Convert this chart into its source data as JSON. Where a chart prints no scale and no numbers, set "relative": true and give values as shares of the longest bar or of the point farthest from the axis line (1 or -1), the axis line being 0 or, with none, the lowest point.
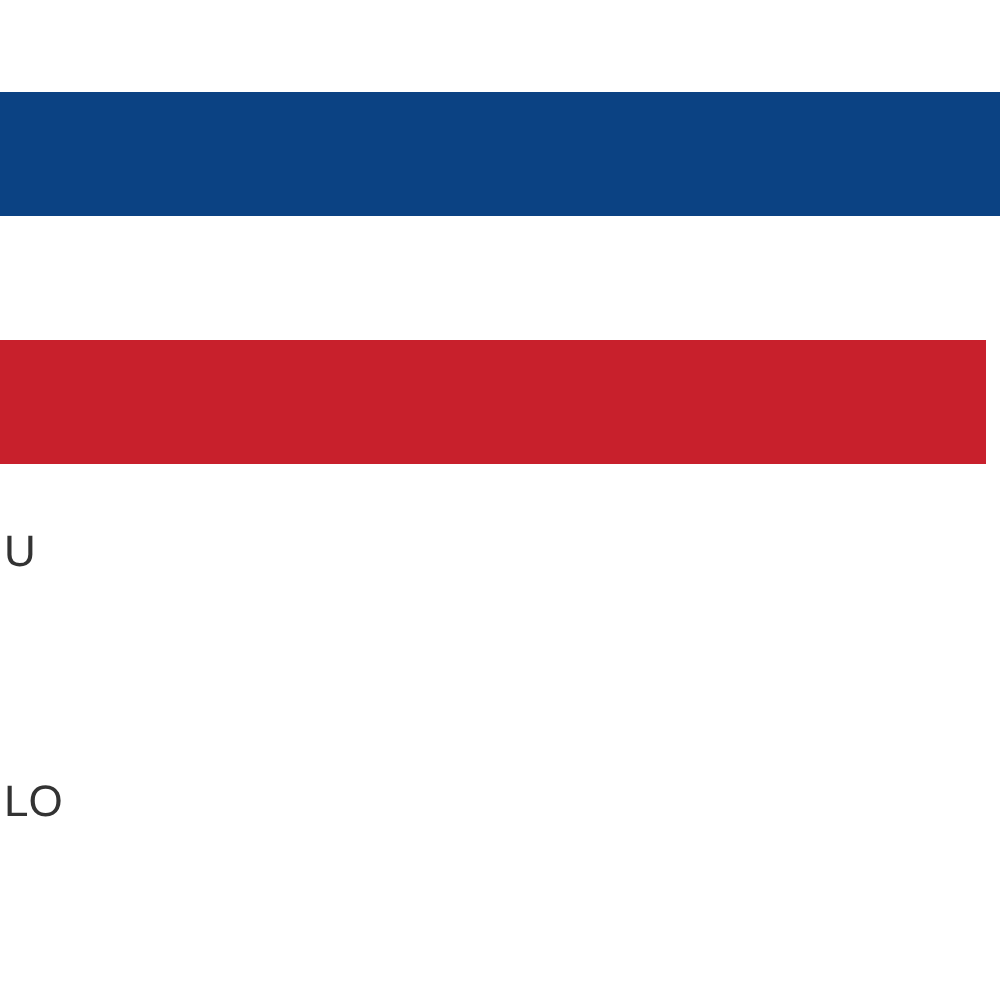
{
  "chart_data": {
    "type": "bar",
    "orientation": "horizontal",
    "relative": true,
    "categories": [
      null,
      null
    ],
    "values": [
      1,
      0.986
    ],
    "colors": [
      "#0b4283",
      "#c8202c"
    ],
    "annotations": [
      "U",
      "LO"
    ]
  }
}
